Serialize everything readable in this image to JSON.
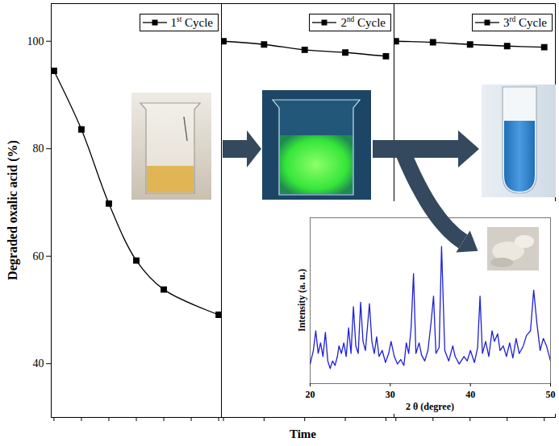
{
  "chart_data": [
    {
      "type": "line",
      "ylabel": "Degraded oxalic acid (%)",
      "xlabel": "Time",
      "x": [
        0,
        1,
        2,
        3,
        4,
        6
      ],
      "series": [
        {
          "name": "1st Cycle",
          "color": "#000000",
          "marker": "square",
          "values": [
            94.5,
            83.6,
            69.8,
            59.2,
            53.8,
            49.1
          ]
        }
      ],
      "xlim": [
        -0.1,
        6.1
      ],
      "xticks": [
        0,
        1,
        2,
        3,
        4,
        5,
        6
      ],
      "ylim": [
        30,
        107
      ],
      "yticks": [
        40,
        60,
        80,
        100
      ],
      "tick_labels": "y",
      "legend": "top-right"
    },
    {
      "type": "line",
      "x": [
        0,
        1,
        2,
        3,
        4
      ],
      "series": [
        {
          "name": "2nd Cycle",
          "color": "#000000",
          "marker": "square",
          "values": [
            100,
            99.4,
            98.4,
            97.9,
            97.2
          ]
        }
      ],
      "xlim": [
        -0.05,
        4.2
      ],
      "xticks": [
        0,
        1,
        2,
        3,
        4
      ],
      "ylim": [
        30,
        107
      ],
      "tick_labels": false,
      "legend": "top-right"
    },
    {
      "type": "line",
      "x": [
        0,
        1,
        2,
        3,
        4
      ],
      "series": [
        {
          "name": "3rd Cycle",
          "color": "#000000",
          "marker": "square",
          "values": [
            100,
            99.8,
            99.4,
            99.1,
            98.9
          ]
        }
      ],
      "xlim": [
        -0.05,
        4.3
      ],
      "xticks": [
        0,
        1,
        2,
        3,
        4
      ],
      "ylim": [
        30,
        107
      ],
      "tick_labels": false,
      "legend": "top-right"
    },
    {
      "type": "line",
      "xlabel": "2 θ (degree)",
      "ylabel": "Intensity (a. u.)",
      "x": [
        20.0,
        20.4,
        20.7,
        21.0,
        21.3,
        21.6,
        21.9,
        22.2,
        22.5,
        22.8,
        23.1,
        23.4,
        23.6,
        23.9,
        24.2,
        24.5,
        24.8,
        25.1,
        25.4,
        25.7,
        26.0,
        26.3,
        26.6,
        26.9,
        27.4,
        27.7,
        28.0,
        28.3,
        28.6,
        29.0,
        29.4,
        29.8,
        30.1,
        30.5,
        30.9,
        31.3,
        31.7,
        32.0,
        32.3,
        32.6,
        32.9,
        33.2,
        33.6,
        33.9,
        34.3,
        34.7,
        35.1,
        35.4,
        35.7,
        36.1,
        36.4,
        36.8,
        37.3,
        37.8,
        38.1,
        38.6,
        39.2,
        39.6,
        40.0,
        40.5,
        40.9,
        41.2,
        41.5,
        41.9,
        42.3,
        42.7,
        43.0,
        43.4,
        43.7,
        44.1,
        44.5,
        44.9,
        45.3,
        45.7,
        46.1,
        46.6,
        47.0,
        47.5,
        47.9,
        48.3,
        48.7,
        49.1,
        49.5,
        50.0
      ],
      "values": [
        13,
        22,
        35,
        20,
        27,
        18,
        34,
        15,
        10,
        15,
        12,
        18,
        25,
        20,
        27,
        18,
        37,
        20,
        51,
        25,
        20,
        54,
        28,
        22,
        53,
        28,
        20,
        31,
        18,
        22,
        14,
        20,
        28,
        18,
        13,
        16,
        12,
        27,
        20,
        37,
        73,
        20,
        27,
        19,
        15,
        22,
        41,
        58,
        20,
        24,
        91,
        22,
        15,
        25,
        18,
        13,
        18,
        15,
        22,
        14,
        24,
        58,
        20,
        28,
        18,
        35,
        28,
        33,
        22,
        25,
        18,
        27,
        17,
        30,
        20,
        25,
        32,
        35,
        62,
        40,
        22,
        30,
        25,
        15
      ],
      "color": "#1f1fd6",
      "xlim": [
        20,
        50
      ],
      "xticks": [
        20,
        30,
        40,
        50
      ],
      "ylim": [
        0,
        110
      ],
      "tick_labels": "x"
    }
  ]
}
